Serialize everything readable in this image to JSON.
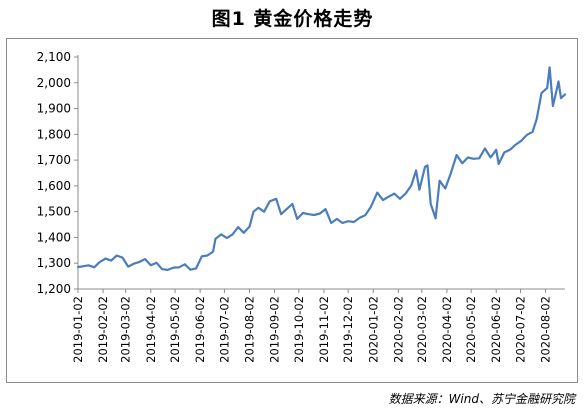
{
  "page": {
    "title": "图1  黄金价格走势",
    "source": "数据来源：Wind、苏宁金融研究院"
  },
  "chart_data": {
    "type": "line",
    "title": "图1  黄金价格走势",
    "xlabel": "",
    "ylabel": "",
    "ylim": [
      1200,
      2100
    ],
    "yticks": [
      1200,
      1300,
      1400,
      1500,
      1600,
      1700,
      1800,
      1900,
      2000,
      2100
    ],
    "ytick_labels": [
      "1,200",
      "1,300",
      "1,400",
      "1,500",
      "1,600",
      "1,700",
      "1,800",
      "1,900",
      "2,000",
      "2,100"
    ],
    "xlim": [
      "2019-01-02",
      "2020-08-26"
    ],
    "xtick_labels": [
      "2019-01-02",
      "2019-02-02",
      "2019-03-02",
      "2019-04-02",
      "2019-05-02",
      "2019-06-02",
      "2019-07-02",
      "2019-08-02",
      "2019-09-02",
      "2019-10-02",
      "2019-11-02",
      "2019-12-02",
      "2020-01-02",
      "2020-02-02",
      "2020-03-02",
      "2020-04-02",
      "2020-05-02",
      "2020-06-02",
      "2020-07-02",
      "2020-08-02"
    ],
    "grid": false,
    "line_color": "#4a7ebb",
    "series": [
      {
        "points": [
          [
            "2019-01-02",
            1285
          ],
          [
            "2019-01-08",
            1288
          ],
          [
            "2019-01-15",
            1292
          ],
          [
            "2019-01-22",
            1284
          ],
          [
            "2019-01-29",
            1305
          ],
          [
            "2019-02-05",
            1318
          ],
          [
            "2019-02-12",
            1310
          ],
          [
            "2019-02-19",
            1330
          ],
          [
            "2019-02-26",
            1322
          ],
          [
            "2019-03-05",
            1287
          ],
          [
            "2019-03-12",
            1298
          ],
          [
            "2019-03-19",
            1305
          ],
          [
            "2019-03-26",
            1316
          ],
          [
            "2019-04-02",
            1292
          ],
          [
            "2019-04-09",
            1302
          ],
          [
            "2019-04-16",
            1277
          ],
          [
            "2019-04-23",
            1274
          ],
          [
            "2019-04-30",
            1283
          ],
          [
            "2019-05-07",
            1284
          ],
          [
            "2019-05-14",
            1296
          ],
          [
            "2019-05-21",
            1275
          ],
          [
            "2019-05-28",
            1280
          ],
          [
            "2019-06-04",
            1327
          ],
          [
            "2019-06-11",
            1330
          ],
          [
            "2019-06-18",
            1345
          ],
          [
            "2019-06-21",
            1395
          ],
          [
            "2019-06-28",
            1412
          ],
          [
            "2019-07-05",
            1398
          ],
          [
            "2019-07-12",
            1412
          ],
          [
            "2019-07-19",
            1440
          ],
          [
            "2019-07-26",
            1418
          ],
          [
            "2019-08-02",
            1442
          ],
          [
            "2019-08-07",
            1500
          ],
          [
            "2019-08-13",
            1515
          ],
          [
            "2019-08-20",
            1500
          ],
          [
            "2019-08-27",
            1540
          ],
          [
            "2019-09-04",
            1550
          ],
          [
            "2019-09-10",
            1490
          ],
          [
            "2019-09-17",
            1510
          ],
          [
            "2019-09-24",
            1530
          ],
          [
            "2019-09-30",
            1472
          ],
          [
            "2019-10-07",
            1495
          ],
          [
            "2019-10-14",
            1490
          ],
          [
            "2019-10-21",
            1487
          ],
          [
            "2019-10-28",
            1493
          ],
          [
            "2019-11-04",
            1510
          ],
          [
            "2019-11-11",
            1456
          ],
          [
            "2019-11-18",
            1472
          ],
          [
            "2019-11-25",
            1456
          ],
          [
            "2019-12-02",
            1463
          ],
          [
            "2019-12-09",
            1460
          ],
          [
            "2019-12-16",
            1476
          ],
          [
            "2019-12-23",
            1486
          ],
          [
            "2019-12-30",
            1518
          ],
          [
            "2020-01-07",
            1574
          ],
          [
            "2020-01-14",
            1545
          ],
          [
            "2020-01-21",
            1558
          ],
          [
            "2020-01-28",
            1570
          ],
          [
            "2020-02-04",
            1550
          ],
          [
            "2020-02-11",
            1570
          ],
          [
            "2020-02-18",
            1602
          ],
          [
            "2020-02-24",
            1660
          ],
          [
            "2020-02-28",
            1585
          ],
          [
            "2020-03-06",
            1674
          ],
          [
            "2020-03-09",
            1680
          ],
          [
            "2020-03-13",
            1530
          ],
          [
            "2020-03-19",
            1474
          ],
          [
            "2020-03-24",
            1620
          ],
          [
            "2020-03-31",
            1590
          ],
          [
            "2020-04-07",
            1650
          ],
          [
            "2020-04-14",
            1720
          ],
          [
            "2020-04-21",
            1688
          ],
          [
            "2020-04-28",
            1710
          ],
          [
            "2020-05-05",
            1705
          ],
          [
            "2020-05-12",
            1707
          ],
          [
            "2020-05-19",
            1745
          ],
          [
            "2020-05-26",
            1710
          ],
          [
            "2020-06-02",
            1740
          ],
          [
            "2020-06-05",
            1685
          ],
          [
            "2020-06-12",
            1730
          ],
          [
            "2020-06-19",
            1740
          ],
          [
            "2020-06-26",
            1760
          ],
          [
            "2020-07-03",
            1775
          ],
          [
            "2020-07-10",
            1798
          ],
          [
            "2020-07-17",
            1810
          ],
          [
            "2020-07-22",
            1860
          ],
          [
            "2020-07-28",
            1960
          ],
          [
            "2020-08-04",
            1980
          ],
          [
            "2020-08-07",
            2060
          ],
          [
            "2020-08-11",
            1910
          ],
          [
            "2020-08-14",
            1950
          ],
          [
            "2020-08-18",
            2005
          ],
          [
            "2020-08-21",
            1940
          ],
          [
            "2020-08-26",
            1955
          ]
        ]
      }
    ]
  }
}
